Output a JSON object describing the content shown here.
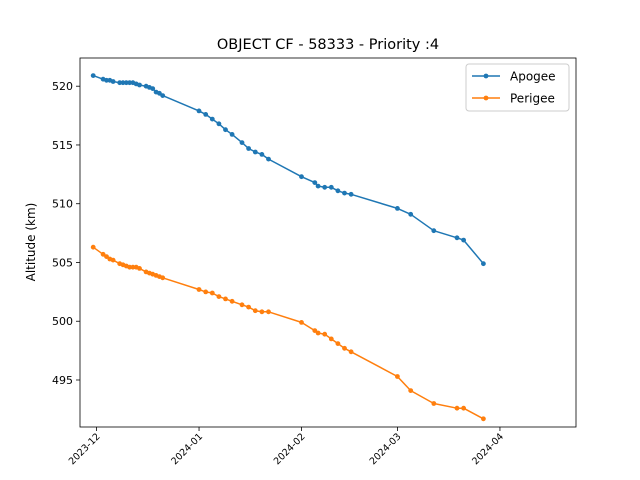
{
  "chart_data": {
    "type": "line",
    "title": "OBJECT CF - 58333 - Priority :4",
    "xlabel": "",
    "ylabel": "Altitude (km)",
    "xlim": [
      "2023-11-26",
      "2024-04-24"
    ],
    "ylim": [
      491.0,
      522.4
    ],
    "x_ticks": [
      "2023-12",
      "2024-01",
      "2024-02",
      "2024-03",
      "2024-04"
    ],
    "y_ticks": [
      495,
      500,
      505,
      510,
      515,
      520
    ],
    "grid": false,
    "legend_position": "top-right",
    "colors": {
      "Apogee": "#1f77b4",
      "Perigee": "#ff7f0e"
    },
    "series": [
      {
        "name": "Apogee",
        "points": [
          [
            "2023-11-30",
            520.9
          ],
          [
            "2023-12-03",
            520.6
          ],
          [
            "2023-12-04",
            520.5
          ],
          [
            "2023-12-05",
            520.5
          ],
          [
            "2023-12-06",
            520.4
          ],
          [
            "2023-12-08",
            520.3
          ],
          [
            "2023-12-09",
            520.3
          ],
          [
            "2023-12-10",
            520.3
          ],
          [
            "2023-12-11",
            520.3
          ],
          [
            "2023-12-12",
            520.3
          ],
          [
            "2023-12-13",
            520.2
          ],
          [
            "2023-12-14",
            520.1
          ],
          [
            "2023-12-16",
            520.0
          ],
          [
            "2023-12-17",
            519.9
          ],
          [
            "2023-12-18",
            519.8
          ],
          [
            "2023-12-19",
            519.5
          ],
          [
            "2023-12-20",
            519.4
          ],
          [
            "2023-12-21",
            519.2
          ],
          [
            "2024-01-01",
            517.9
          ],
          [
            "2024-01-03",
            517.6
          ],
          [
            "2024-01-05",
            517.2
          ],
          [
            "2024-01-07",
            516.8
          ],
          [
            "2024-01-09",
            516.3
          ],
          [
            "2024-01-11",
            515.9
          ],
          [
            "2024-01-14",
            515.2
          ],
          [
            "2024-01-16",
            514.7
          ],
          [
            "2024-01-18",
            514.4
          ],
          [
            "2024-01-20",
            514.2
          ],
          [
            "2024-01-22",
            513.8
          ],
          [
            "2024-02-01",
            512.3
          ],
          [
            "2024-02-05",
            511.8
          ],
          [
            "2024-02-06",
            511.5
          ],
          [
            "2024-02-08",
            511.4
          ],
          [
            "2024-02-10",
            511.4
          ],
          [
            "2024-02-12",
            511.1
          ],
          [
            "2024-02-14",
            510.9
          ],
          [
            "2024-02-16",
            510.8
          ],
          [
            "2024-03-01",
            509.6
          ],
          [
            "2024-03-05",
            509.1
          ],
          [
            "2024-03-12",
            507.7
          ],
          [
            "2024-03-19",
            507.1
          ],
          [
            "2024-03-21",
            506.9
          ],
          [
            "2024-03-27",
            504.9
          ]
        ]
      },
      {
        "name": "Perigee",
        "points": [
          [
            "2023-11-30",
            506.3
          ],
          [
            "2023-12-03",
            505.7
          ],
          [
            "2023-12-04",
            505.5
          ],
          [
            "2023-12-05",
            505.3
          ],
          [
            "2023-12-06",
            505.2
          ],
          [
            "2023-12-08",
            504.9
          ],
          [
            "2023-12-09",
            504.8
          ],
          [
            "2023-12-10",
            504.7
          ],
          [
            "2023-12-11",
            504.6
          ],
          [
            "2023-12-12",
            504.6
          ],
          [
            "2023-12-13",
            504.6
          ],
          [
            "2023-12-14",
            504.5
          ],
          [
            "2023-12-16",
            504.2
          ],
          [
            "2023-12-17",
            504.1
          ],
          [
            "2023-12-18",
            504.0
          ],
          [
            "2023-12-19",
            503.9
          ],
          [
            "2023-12-20",
            503.8
          ],
          [
            "2023-12-21",
            503.7
          ],
          [
            "2024-01-01",
            502.7
          ],
          [
            "2024-01-03",
            502.5
          ],
          [
            "2024-01-05",
            502.4
          ],
          [
            "2024-01-07",
            502.1
          ],
          [
            "2024-01-09",
            501.9
          ],
          [
            "2024-01-11",
            501.7
          ],
          [
            "2024-01-14",
            501.4
          ],
          [
            "2024-01-16",
            501.2
          ],
          [
            "2024-01-18",
            500.9
          ],
          [
            "2024-01-20",
            500.8
          ],
          [
            "2024-01-22",
            500.8
          ],
          [
            "2024-02-01",
            499.9
          ],
          [
            "2024-02-05",
            499.2
          ],
          [
            "2024-02-06",
            499.0
          ],
          [
            "2024-02-08",
            498.9
          ],
          [
            "2024-02-10",
            498.5
          ],
          [
            "2024-02-12",
            498.1
          ],
          [
            "2024-02-14",
            497.7
          ],
          [
            "2024-02-16",
            497.4
          ],
          [
            "2024-03-01",
            495.3
          ],
          [
            "2024-03-05",
            494.1
          ],
          [
            "2024-03-12",
            493.0
          ],
          [
            "2024-03-19",
            492.6
          ],
          [
            "2024-03-21",
            492.6
          ],
          [
            "2024-03-27",
            491.7
          ]
        ]
      }
    ]
  }
}
